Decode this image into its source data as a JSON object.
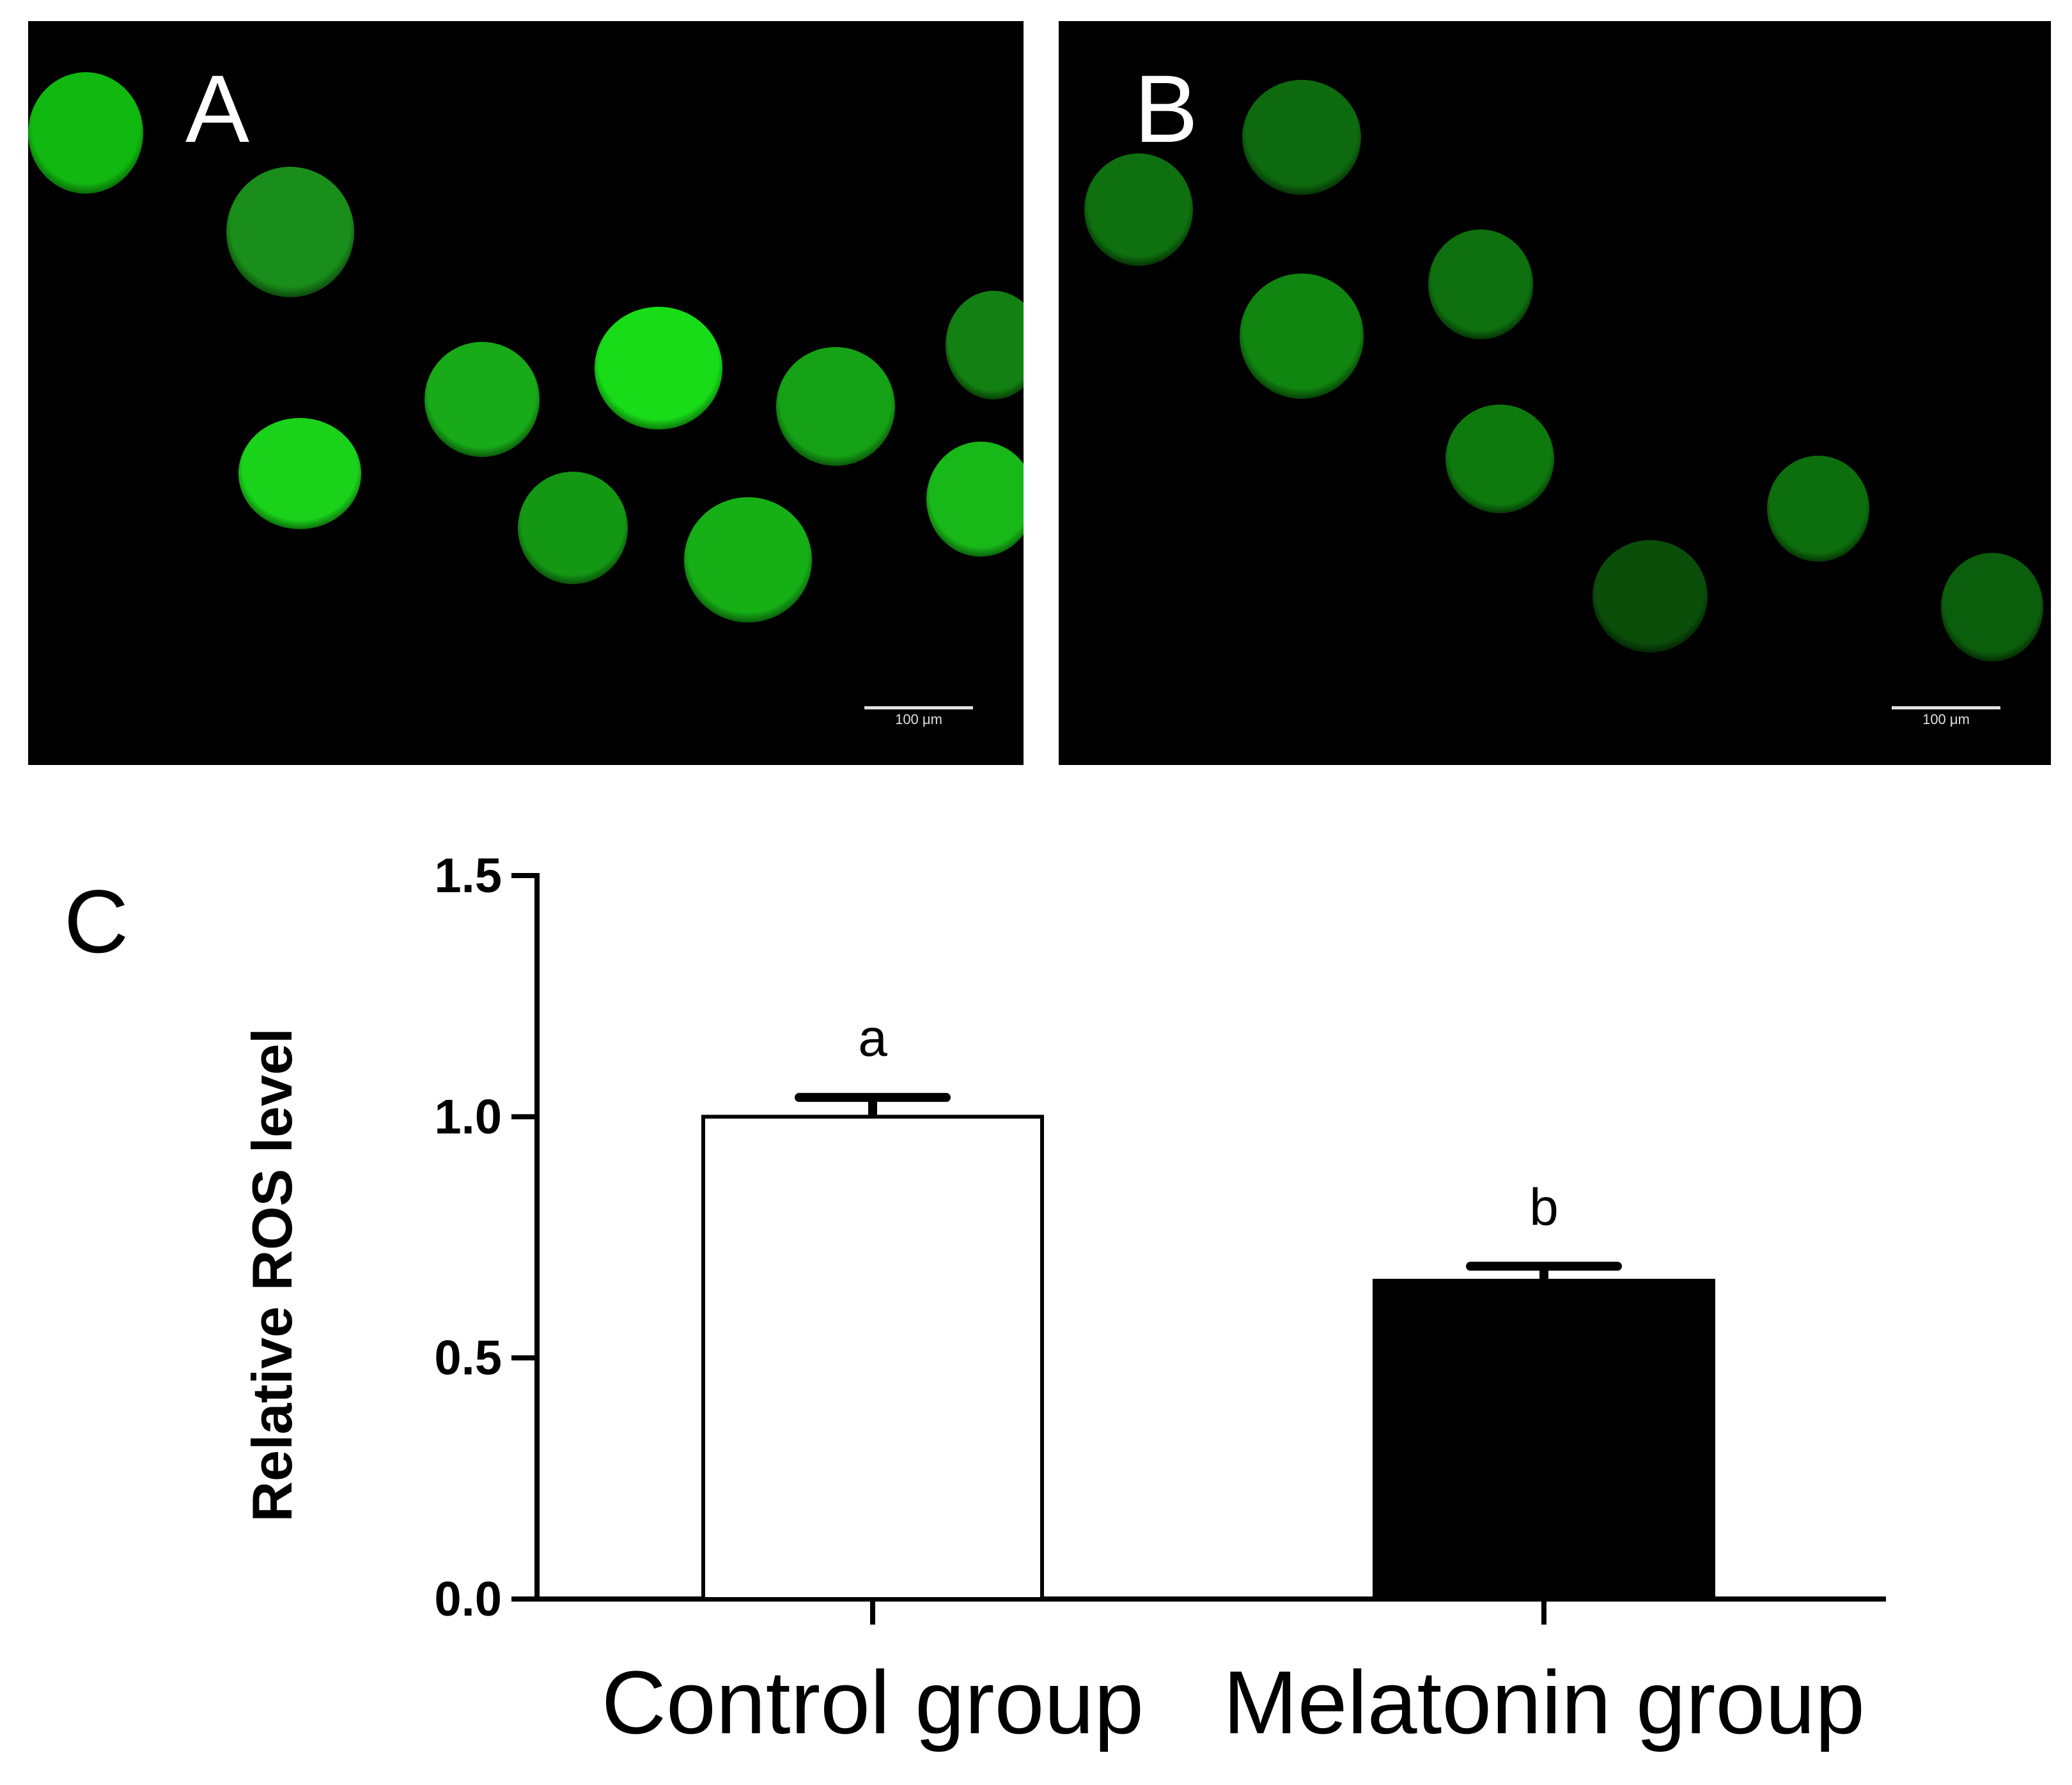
{
  "panels": {
    "a": {
      "label": "A",
      "scale_text": "100 μm"
    },
    "b": {
      "label": "B",
      "scale_text": "100 μm"
    }
  },
  "colors": {
    "fluorescence": "#00c800",
    "control_bar": "#ffffff",
    "melatonin_bar": "#000000"
  },
  "chart_data": {
    "type": "bar",
    "panel_label": "C",
    "categories": [
      "Control group",
      "Melatonin group"
    ],
    "values": [
      1.0,
      0.66
    ],
    "errors": [
      0.04,
      0.03
    ],
    "significance": [
      "a",
      "b"
    ],
    "ylabel": "Relative ROS level",
    "xlabel": "",
    "title": "",
    "ylim": [
      0,
      1.5
    ],
    "yticks": [
      "0.0",
      "0.5",
      "1.0",
      "1.5"
    ],
    "grid": false
  }
}
